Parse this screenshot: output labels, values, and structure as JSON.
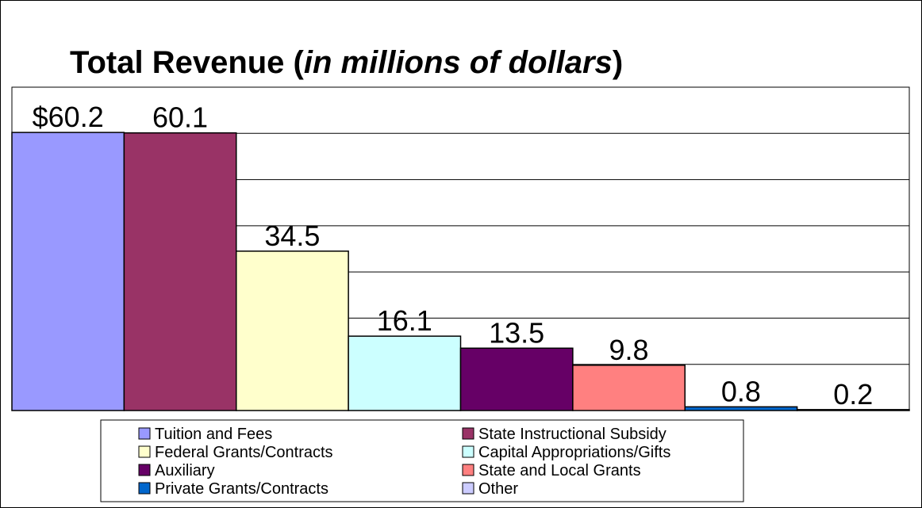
{
  "chart_data": {
    "type": "bar",
    "title": [
      "Total Revenue (",
      "in millions of dollars",
      ")"
    ],
    "series": [
      {
        "name": "Tuition and Fees",
        "color": "#9999ff",
        "values": [
          60.2
        ],
        "value_labels": [
          "$60.2"
        ]
      },
      {
        "name": "State Instructional Subsidy",
        "color": "#993366",
        "values": [
          60.1
        ]
      },
      {
        "name": "Federal Grants/Contracts",
        "color": "#ffffcc",
        "values": [
          34.5
        ]
      },
      {
        "name": "Capital Appropriations/Gifts",
        "color": "#ccffff",
        "values": [
          16.1
        ]
      },
      {
        "name": "Auxiliary",
        "color": "#660066",
        "values": [
          13.5
        ]
      },
      {
        "name": "State and Local Grants",
        "color": "#ff8080",
        "values": [
          9.8
        ]
      },
      {
        "name": "Private Grants/Contracts",
        "color": "#0066cc",
        "values": [
          0.8
        ]
      },
      {
        "name": "Other",
        "color": "#ccccff",
        "values": [
          0.2
        ]
      }
    ],
    "ylim": [
      0,
      70
    ],
    "yticks": [
      0,
      10,
      20,
      30,
      40,
      50,
      60,
      70
    ],
    "grid": true
  }
}
